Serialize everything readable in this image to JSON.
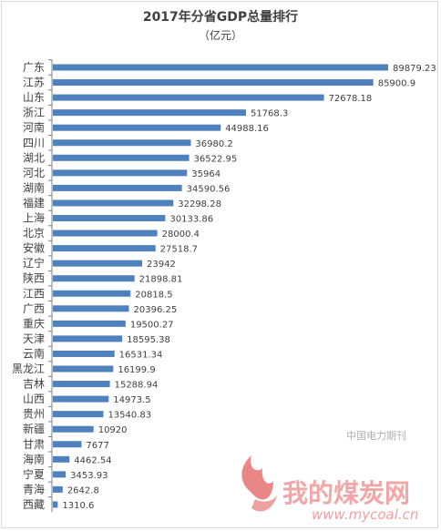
{
  "chart_data": {
    "type": "bar",
    "orientation": "horizontal",
    "title": "2017年分省GDP总量排行",
    "subtitle": "（亿元）",
    "categories": [
      "广东",
      "江苏",
      "山东",
      "浙江",
      "河南",
      "四川",
      "湖北",
      "河北",
      "湖南",
      "福建",
      "上海",
      "北京",
      "安徽",
      "辽宁",
      "陕西",
      "江西",
      "广西",
      "重庆",
      "天津",
      "云南",
      "黑龙江",
      "吉林",
      "山西",
      "贵州",
      "新疆",
      "甘肃",
      "海南",
      "宁夏",
      "青海",
      "西藏"
    ],
    "values": [
      89879.23,
      85900.9,
      72678.18,
      51768.3,
      44988.16,
      36980.2,
      36522.95,
      35964,
      34590.56,
      32298.28,
      30133.86,
      28000.4,
      27518.7,
      23942,
      21898.81,
      20818.5,
      20396.25,
      19500.27,
      18595.38,
      16531.34,
      16199.9,
      15288.94,
      14973.5,
      13540.83,
      10920,
      7677,
      4462.54,
      3453.93,
      2642.8,
      1310.6
    ],
    "value_labels": [
      "89879.23",
      "85900.9",
      "72678.18",
      "51768.3",
      "44988.16",
      "36980.2",
      "36522.95",
      "35964",
      "34590.56",
      "32298.28",
      "30133.86",
      "28000.4",
      "27518.7",
      "23942",
      "21898.81",
      "20818.5",
      "20396.25",
      "19500.27",
      "18595.38",
      "16531.34",
      "16199.9",
      "15288.94",
      "14973.5",
      "13540.83",
      "10920",
      "7677",
      "4462.54",
      "3453.93",
      "2642.8",
      "1310.6"
    ],
    "xlim": [
      0,
      89879.23
    ],
    "grid": false,
    "legend": "none",
    "bar_color": "#4f81bd",
    "axis_color": "#7f7f7f",
    "text_color": "#404040"
  },
  "watermark": {
    "source_text": "中国电力期刊",
    "brand_text": "我的煤炭网",
    "url_text": "www.mycoal.cn",
    "color": "#e05555"
  }
}
